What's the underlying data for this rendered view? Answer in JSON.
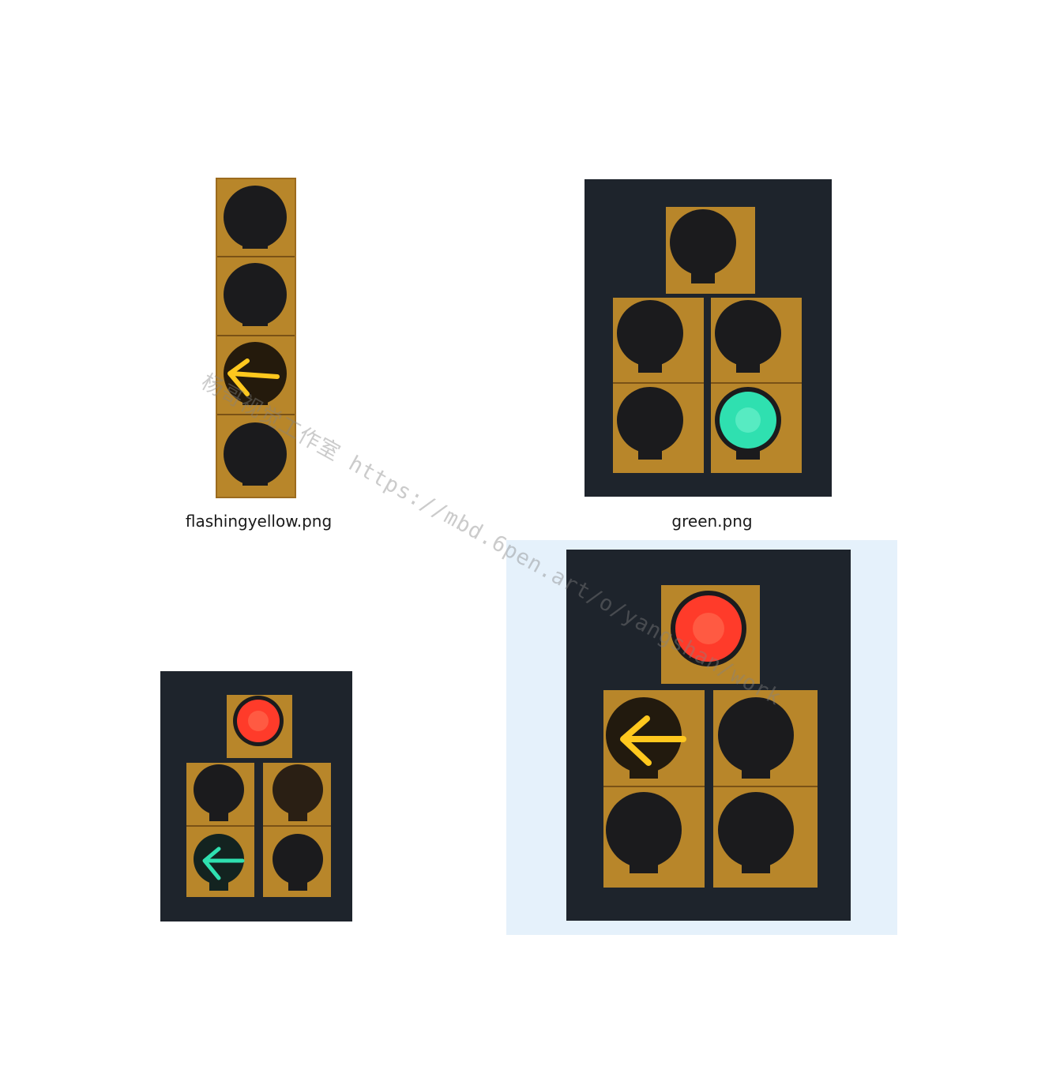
{
  "files": [
    {
      "name": "flashingyellow.png",
      "icon": "traffic-light-thumbnail",
      "active_signal": "yellow left arrow"
    },
    {
      "name": "green.png",
      "icon": "traffic-light-thumbnail",
      "active_signal": "green ball"
    },
    {
      "name": "",
      "icon": "traffic-light-thumbnail",
      "active_signal": "red ball + green left arrow"
    },
    {
      "name": "",
      "icon": "traffic-light-thumbnail",
      "active_signal": "red ball + yellow left arrow",
      "selected": true
    }
  ],
  "watermark": {
    "text": "杨哥视觉工作室 https://mbd.6pen.art/o/yangshan/work"
  },
  "colors": {
    "housing": "#b8862a",
    "backplate": "#1e242c",
    "lamp_off": "#1b1b1d",
    "red": "#ff3b2a",
    "yellow": "#ffc81e",
    "green": "#2fe0b0",
    "selection": "#e5f1fb"
  }
}
